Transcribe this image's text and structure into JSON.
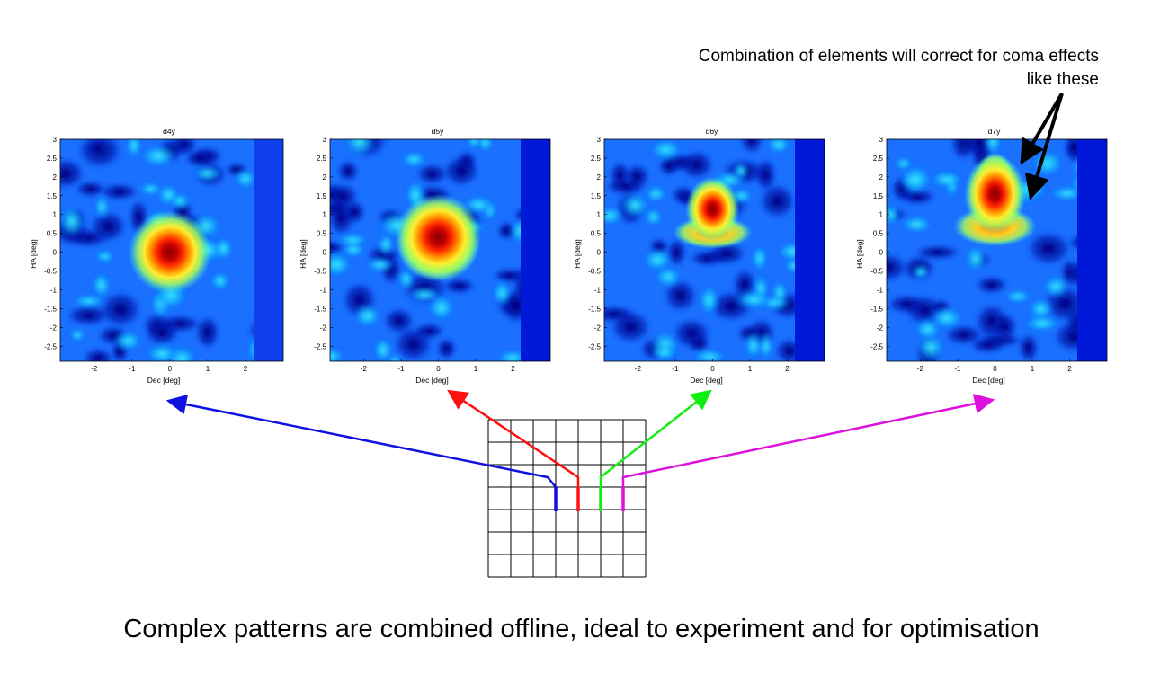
{
  "callout": {
    "line1": "Combination of elements will correct for coma effects",
    "line2": "like these"
  },
  "caption": "Complex patterns are combined offline, ideal to experiment and for optimisation",
  "plots": [
    {
      "title": "d4y",
      "xlabel": "Dec [deg]",
      "ylabel": "HA [deg]",
      "beam_center": [
        0,
        0
      ],
      "beam_shape": "round",
      "arrow_color": "#1010e0"
    },
    {
      "title": "d5y",
      "xlabel": "Dec [deg]",
      "ylabel": "HA [deg]",
      "beam_center": [
        0,
        0.4
      ],
      "beam_shape": "round-halo",
      "arrow_color": "#ff1010"
    },
    {
      "title": "d6y",
      "xlabel": "Dec [deg]",
      "ylabel": "HA [deg]",
      "beam_center": [
        0,
        1.0
      ],
      "beam_shape": "coma",
      "arrow_color": "#10ee10"
    },
    {
      "title": "d7y",
      "xlabel": "Dec [deg]",
      "ylabel": "HA [deg]",
      "beam_center": [
        0,
        1.4
      ],
      "beam_shape": "coma-strong",
      "arrow_color": "#dd10dd"
    }
  ],
  "axes": {
    "x_ticks": [
      "-2",
      "-1",
      "0",
      "1",
      "2"
    ],
    "y_ticks": [
      "3",
      "2.5",
      "2",
      "1.5",
      "1",
      "0.5",
      "0",
      "-0.5",
      "-1",
      "-1.5",
      "-2",
      "-2.5"
    ]
  },
  "array_grid": {
    "rows": 7,
    "cols": 7,
    "active_elements": [
      "blue",
      "red",
      "green",
      "magenta"
    ]
  }
}
